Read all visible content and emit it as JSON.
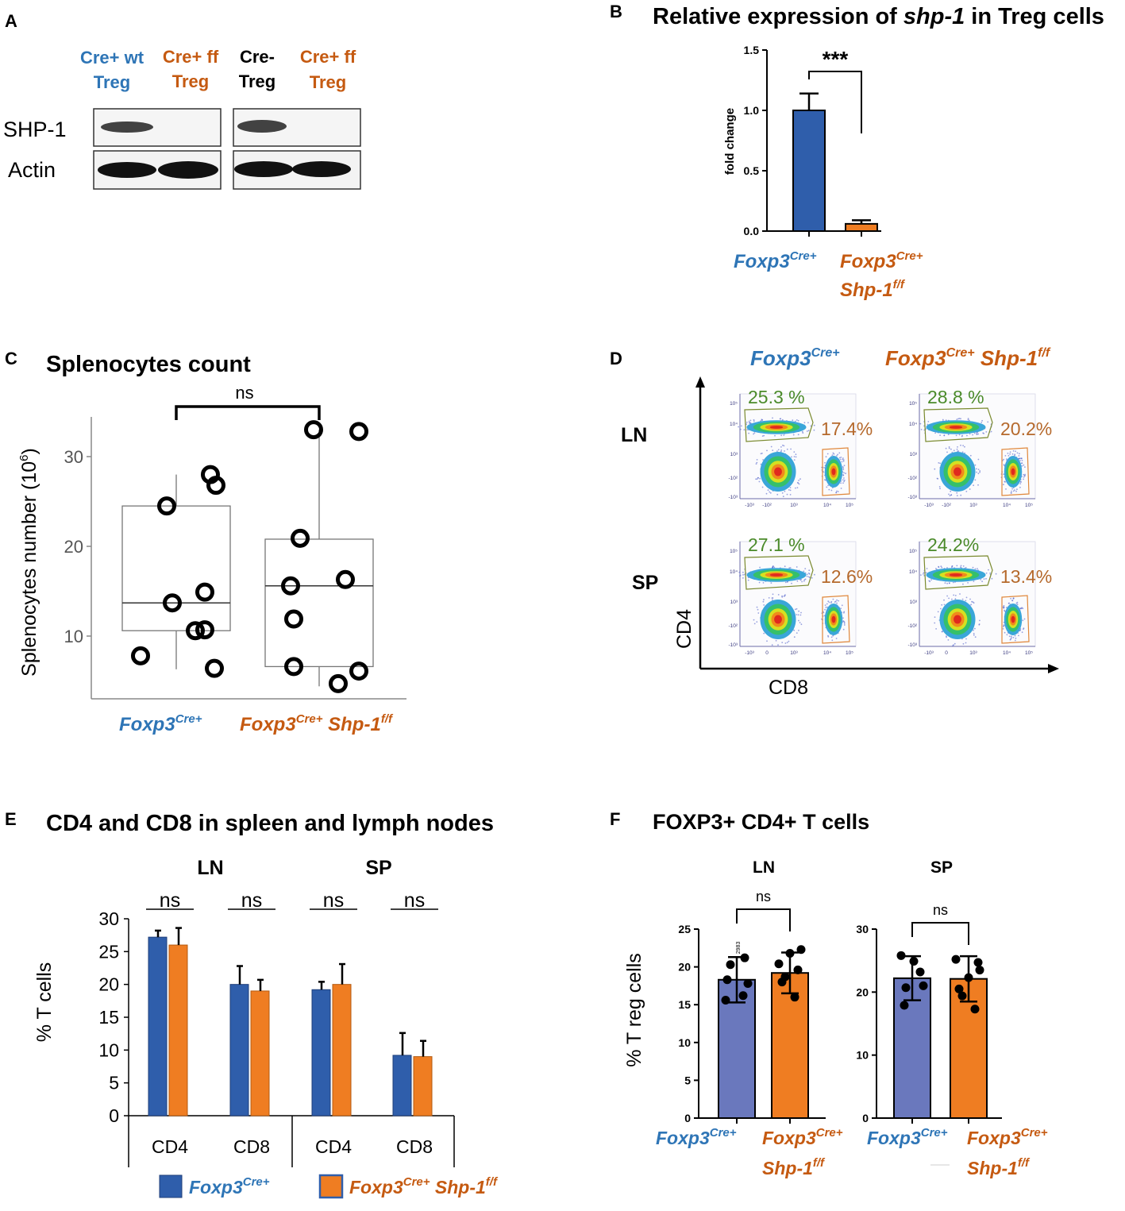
{
  "colors": {
    "blue": "#2e75b6",
    "orange": "#c55a11",
    "barBlue": "#2f5eab",
    "barOrange": "#ef7d22",
    "barLavender": "#6a78bd",
    "gateGreen": "#7a8a2e",
    "gateOrange": "#e0873a",
    "textGreen": "#4a8a2a",
    "textBrown": "#b5692c",
    "black": "#000000"
  },
  "panelA": {
    "letter": "A",
    "lanes": [
      {
        "line1": "Cre+ wt",
        "line2": "Treg",
        "color": "blue"
      },
      {
        "line1": "Cre+ ff",
        "line2": "Treg",
        "color": "orange"
      },
      {
        "line1": "Cre-",
        "line2": "Treg",
        "color": "black"
      },
      {
        "line1": "Cre+ ff",
        "line2": "Treg",
        "color": "orange"
      }
    ],
    "rowLabels": [
      "SHP-1",
      "Actin"
    ]
  },
  "groups": {
    "ctrlGene": "Foxp3",
    "ctrlSup": "Cre+",
    "koGene2": "Shp-1",
    "koSup2": "f/f"
  },
  "panelD": {
    "letter": "D",
    "rows": [
      {
        "label": "LN",
        "cells": [
          {
            "cd4": "25.3 %",
            "cd8": "17.4%"
          },
          {
            "cd4": "28.8 %",
            "cd8": "20.2%"
          }
        ]
      },
      {
        "label": "SP",
        "cells": [
          {
            "cd4": "27.1 %",
            "cd8": "12.6%"
          },
          {
            "cd4": "24.2%",
            "cd8": "13.4%"
          }
        ]
      }
    ],
    "xAxis": "CD8",
    "yAxis": "CD4",
    "tickLabelsX": [
      "-10³",
      "-10²",
      "10³",
      "10⁴",
      "10⁵"
    ],
    "tickLabelsXsp": [
      "-10³",
      "0",
      "10³",
      "10⁴",
      "10⁵"
    ],
    "tickLabelsY": [
      "10⁵",
      "10⁴",
      "10³",
      "-10²",
      "-10³"
    ]
  },
  "chart_data": [
    {
      "panel": "B",
      "type": "bar",
      "title": "Relative expression of shp-1 in Treg cells",
      "title_pre": "Relative expression of ",
      "title_gene": "shp-1",
      "title_post": " in Treg cells",
      "ylabel": "fold change",
      "ylim": [
        0,
        1.5
      ],
      "yticks": [
        "0.0",
        "0.5",
        "1.0",
        "1.5"
      ],
      "categories": [
        "Foxp3 Cre+",
        "Foxp3 Cre+ Shp-1 f/f"
      ],
      "values": [
        1.0,
        0.06
      ],
      "errors": [
        0.14,
        0.03
      ],
      "significance": "***"
    },
    {
      "panel": "C",
      "type": "box",
      "title": "Splenocytes count",
      "ylabel": "Splenocytes number (10",
      "ylabel_sup": "6",
      "ylabel_end": ")",
      "ylim": [
        3,
        35
      ],
      "yticks": [
        "10",
        "20",
        "30"
      ],
      "significance": "ns",
      "groups": [
        {
          "name": "Foxp3 Cre+",
          "q1": 10.6,
          "median": 13.7,
          "q3": 24.5,
          "whisker_low": 6.3,
          "whisker_high": 28.0,
          "points": [
            7.8,
            24.5,
            13.7,
            14.9,
            10.6,
            10.7,
            6.4,
            28.0,
            26.8
          ]
        },
        {
          "name": "Foxp3 Cre+ Shp-1 f/f",
          "q1": 6.6,
          "median": 15.6,
          "q3": 20.8,
          "whisker_low": 4.4,
          "whisker_high": 33.0,
          "points": [
            33.0,
            32.8,
            20.9,
            15.6,
            11.9,
            6.6,
            16.3,
            4.7,
            6.1
          ]
        }
      ]
    },
    {
      "panel": "E",
      "type": "bar",
      "title": "CD4 and CD8 in spleen and lymph nodes",
      "ylabel": "% T cells",
      "ylim": [
        0,
        30
      ],
      "yticks": [
        "0",
        "5",
        "10",
        "15",
        "20",
        "25",
        "30"
      ],
      "sections": [
        "LN",
        "SP"
      ],
      "categories": [
        "CD4",
        "CD8",
        "CD4",
        "CD8"
      ],
      "significance": [
        "ns",
        "ns",
        "ns",
        "ns"
      ],
      "series": [
        {
          "name": "Foxp3 Cre+",
          "values": [
            27.2,
            20.0,
            19.2,
            9.2
          ],
          "errors": [
            1.0,
            2.8,
            1.2,
            3.4
          ]
        },
        {
          "name": "Foxp3 Cre+ Shp-1 f/f",
          "values": [
            26.0,
            19.0,
            20.0,
            9.0
          ],
          "errors": [
            2.6,
            1.7,
            3.1,
            2.4
          ]
        }
      ]
    },
    {
      "panel": "F",
      "type": "bar",
      "title": "FOXP3+ CD4+ T cells",
      "ylabel": "% T reg cells",
      "subplots": [
        {
          "label": "LN",
          "ylim": [
            0,
            25
          ],
          "yticks": [
            "0",
            "5",
            "10",
            "15",
            "20",
            "25"
          ],
          "values": [
            18.3,
            19.2
          ],
          "errors": [
            3.0,
            2.7
          ],
          "significance": "ns",
          "annotation": "2983",
          "points": [
            [
              20.3,
              18.3,
              16.2,
              15.6,
              17.8,
              21.2
            ],
            [
              20.4,
              19.6,
              18.7,
              16.0,
              21.8,
              22.3,
              18.0
            ]
          ]
        },
        {
          "label": "SP",
          "ylim": [
            0,
            30
          ],
          "yticks": [
            "0",
            "10",
            "20",
            "30"
          ],
          "values": [
            22.2,
            22.1
          ],
          "errors": [
            3.5,
            3.6
          ],
          "significance": "ns",
          "points": [
            [
              25.8,
              23.2,
              21.0,
              17.9,
              20.7,
              24.9
            ],
            [
              25.2,
              23.5,
              19.4,
              17.3,
              22.3,
              24.7,
              20.5
            ]
          ]
        }
      ]
    }
  ]
}
